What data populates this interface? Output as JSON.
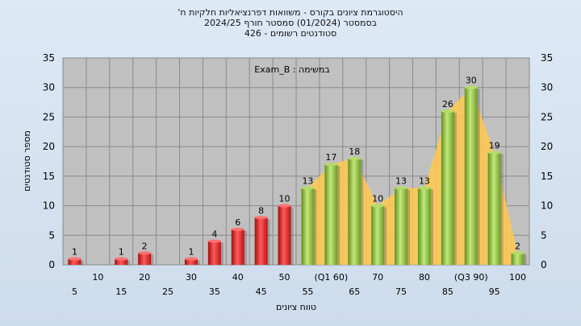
{
  "header": {
    "title": "היסטוגרמת ציונים בקורס - משוואות דפרנציאליות חלקיות ח'",
    "subtitle1": "בסמסטר  (01/2024)  סמסטר חורף  2024/25",
    "subtitle2": "סטודנטים רשומים - 426"
  },
  "chart_data": {
    "type": "bar",
    "title": "היסטוגרמת ציונים בקורס - משוואות דפרנציאליות חלקיות ח'",
    "annotation": "Exam_B : במשימה",
    "xlabel": "טווח ציונים",
    "ylabel": "מספר סטודנטים",
    "ylim": [
      0,
      35
    ],
    "yticks": [
      0,
      5,
      10,
      15,
      20,
      25,
      30,
      35
    ],
    "grid": true,
    "categories": [
      "5",
      "10",
      "15",
      "20",
      "25",
      "30",
      "35",
      "40",
      "45",
      "50",
      "55",
      "(Q1 60)",
      "65",
      "70",
      "75",
      "80",
      "85",
      "(Q3 90)",
      "95",
      "100"
    ],
    "values": [
      1,
      0,
      1,
      2,
      0,
      1,
      4,
      6,
      8,
      10,
      13,
      17,
      18,
      10,
      13,
      13,
      26,
      30,
      19,
      2
    ],
    "colors": {
      "fail": "#e02020",
      "pass": "#8cc63f",
      "area": "#ffc94d",
      "plot_bg": "#c0c0c0"
    }
  }
}
